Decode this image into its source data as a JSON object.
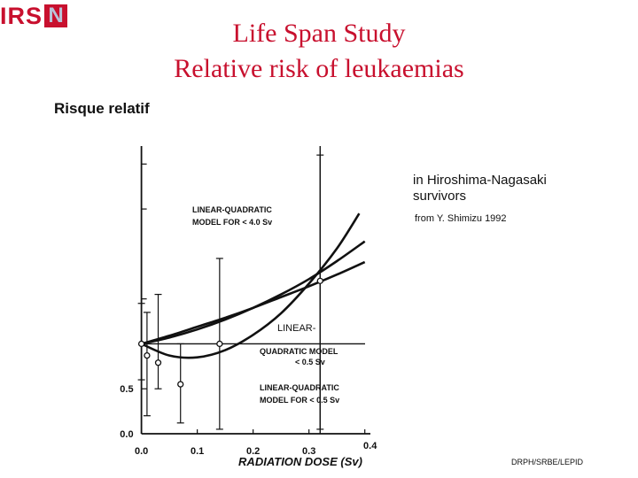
{
  "header": {
    "logo_text": "IRS",
    "logo_box_letter": "N",
    "title_line1": "Life Span Study",
    "title_line2": "Relative risk of leukaemias"
  },
  "notes": {
    "study_line1": "in Hiroshima-Nagasaki",
    "study_line2": "survivors",
    "source": "from Y. Shimizu 1992",
    "footer": "DRPH/SRBE/LEPID"
  },
  "colors": {
    "brand": "#c8102e",
    "ink": "#111111"
  },
  "chart_data": {
    "type": "line",
    "ylabel": "Risque relatif",
    "xlabel": "RADIATION DOSE (Sv)",
    "xlim": [
      -0.02,
      0.41
    ],
    "ylim": [
      0.0,
      3.2
    ],
    "x_ticks": [
      "0.0",
      "0.1",
      "0.2",
      "0.3",
      "0.4"
    ],
    "x_tick_values": [
      0.0,
      0.1,
      0.2,
      0.3,
      0.4
    ],
    "y_ticks": [
      "0.0",
      "0.5"
    ],
    "y_tick_values": [
      0.0,
      0.5
    ],
    "reference_line": 1.0,
    "grid": false,
    "series": [
      {
        "name": "LINEAR-QUADRATIC MODEL FOR < 4.0 Sv",
        "x": [
          0.0,
          0.05,
          0.1,
          0.15,
          0.2,
          0.25,
          0.3,
          0.35,
          0.4
        ],
        "y": [
          1.0,
          1.09,
          1.19,
          1.29,
          1.4,
          1.52,
          1.64,
          1.77,
          1.91
        ]
      },
      {
        "name": "LINEAR-QUADRATIC MODEL < 0.5 Sv",
        "x": [
          0.0,
          0.05,
          0.1,
          0.15,
          0.2,
          0.25,
          0.3,
          0.35,
          0.4
        ],
        "y": [
          1.0,
          1.07,
          1.16,
          1.27,
          1.4,
          1.55,
          1.72,
          1.92,
          2.14
        ]
      },
      {
        "name": "LINEAR-QUADRATIC MODEL FOR < 0.5 Sv",
        "x": [
          0.0,
          0.05,
          0.1,
          0.15,
          0.2,
          0.25,
          0.3,
          0.35,
          0.39
        ],
        "y": [
          1.0,
          0.87,
          0.85,
          0.93,
          1.1,
          1.34,
          1.67,
          2.06,
          2.45
        ]
      }
    ],
    "observed_points": [
      {
        "x": 0.0,
        "y": 1.0,
        "ylow": 0.6,
        "yhigh": 1.45
      },
      {
        "x": 0.01,
        "y": 0.87,
        "ylow": 0.2,
        "yhigh": 1.35
      },
      {
        "x": 0.03,
        "y": 0.79,
        "ylow": 0.5,
        "yhigh": 1.55
      },
      {
        "x": 0.07,
        "y": 0.55,
        "ylow": 0.12,
        "yhigh": 1.0
      },
      {
        "x": 0.14,
        "y": 1.0,
        "ylow": 0.05,
        "yhigh": 1.95
      },
      {
        "x": 0.32,
        "y": 1.7,
        "ylow": 0.05,
        "yhigh": 3.1
      }
    ],
    "annotations": [
      {
        "text": "LINEAR-QUADRATIC",
        "series": 0
      },
      {
        "text": "MODEL FOR < 4.0 Sv",
        "series": 0
      },
      {
        "text": "LINEAR-",
        "series": 1
      },
      {
        "text": "QUADRATIC MODEL",
        "series": 1
      },
      {
        "text": "< 0.5 Sv",
        "series": 1
      },
      {
        "text": "LINEAR-QUADRATIC",
        "series": 2
      },
      {
        "text": "MODEL FOR < 0.5 Sv",
        "series": 2
      }
    ]
  }
}
